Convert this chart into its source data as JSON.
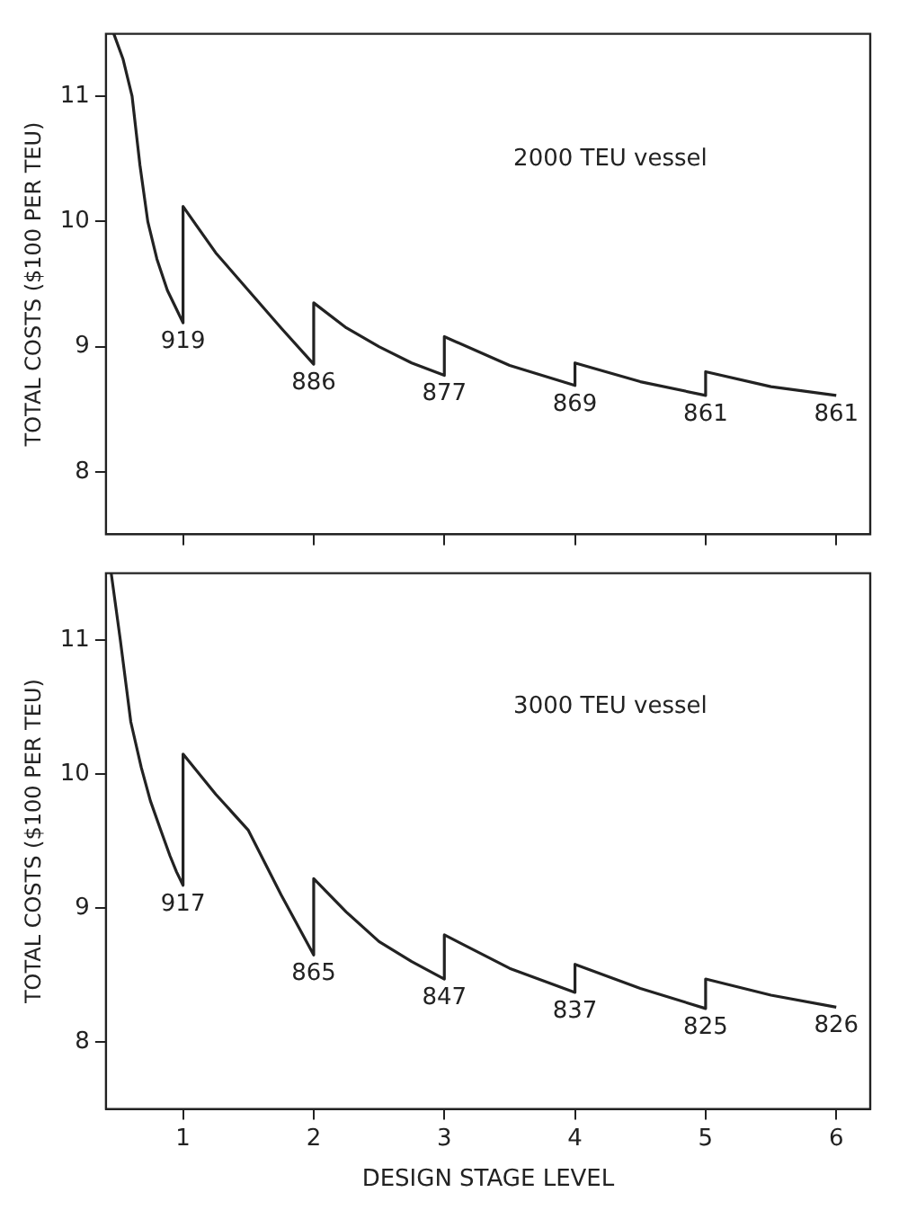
{
  "chart_data": [
    {
      "type": "line",
      "ylabel": "TOTAL COSTS ($100 PER TEU)",
      "xlim": [
        0.41,
        6.26
      ],
      "xticks": [
        1,
        2,
        3,
        4,
        5,
        6
      ],
      "ylim": [
        7.5,
        11.5
      ],
      "yticks": [
        8,
        9,
        10,
        11
      ],
      "tick_labels": "y",
      "color": "#222222",
      "marker": "none",
      "x": [
        0.47,
        0.54,
        0.61,
        0.67,
        0.73,
        0.8,
        0.88,
        0.94,
        1,
        1,
        1.25,
        1.5,
        1.75,
        2,
        2,
        2.25,
        2.5,
        2.75,
        3,
        3,
        3.5,
        4,
        4,
        4.5,
        5,
        5,
        5.5,
        6
      ],
      "values": [
        11.5,
        11.3,
        11.0,
        10.45,
        10.0,
        9.7,
        9.45,
        9.32,
        9.19,
        10.12,
        9.75,
        9.45,
        9.15,
        8.86,
        9.35,
        9.15,
        9.0,
        8.87,
        8.77,
        9.08,
        8.85,
        8.69,
        8.87,
        8.72,
        8.61,
        8.8,
        8.68,
        8.61
      ],
      "annotations": [
        "2000 TEU vessel",
        {
          "text": "919",
          "x": 1,
          "y": 9.19
        },
        {
          "text": "886",
          "x": 2,
          "y": 8.86
        },
        {
          "text": "877",
          "x": 3,
          "y": 8.77
        },
        {
          "text": "869",
          "x": 4,
          "y": 8.69
        },
        {
          "text": "861",
          "x": 5,
          "y": 8.61
        },
        {
          "text": "861",
          "x": 6,
          "y": 8.61
        }
      ]
    },
    {
      "type": "line",
      "xlabel": "DESIGN STAGE LEVEL",
      "ylabel": "TOTAL COSTS ($100 PER TEU)",
      "xlim": [
        0.41,
        6.26
      ],
      "xticks": [
        1,
        2,
        3,
        4,
        5,
        6
      ],
      "ylim": [
        7.5,
        11.5
      ],
      "yticks": [
        8,
        9,
        10,
        11
      ],
      "color": "#222222",
      "marker": "none",
      "x": [
        0.45,
        0.52,
        0.6,
        0.68,
        0.75,
        0.83,
        0.9,
        0.95,
        1,
        1,
        1.25,
        1.5,
        1.75,
        2,
        2,
        2.25,
        2.5,
        2.75,
        3,
        3,
        3.5,
        4,
        4,
        4.5,
        5,
        5,
        5.5,
        6
      ],
      "values": [
        11.5,
        11.0,
        10.39,
        10.05,
        9.8,
        9.58,
        9.39,
        9.27,
        9.17,
        10.15,
        9.85,
        9.58,
        9.1,
        8.65,
        9.22,
        8.97,
        8.75,
        8.6,
        8.47,
        8.8,
        8.55,
        8.37,
        8.58,
        8.4,
        8.25,
        8.47,
        8.35,
        8.26
      ],
      "annotations": [
        "3000 TEU vessel",
        {
          "text": "917",
          "x": 1,
          "y": 9.17
        },
        {
          "text": "865",
          "x": 2,
          "y": 8.65
        },
        {
          "text": "847",
          "x": 3,
          "y": 8.47
        },
        {
          "text": "837",
          "x": 4,
          "y": 8.37
        },
        {
          "text": "825",
          "x": 5,
          "y": 8.25
        },
        {
          "text": "826",
          "x": 6,
          "y": 8.26
        }
      ]
    }
  ]
}
